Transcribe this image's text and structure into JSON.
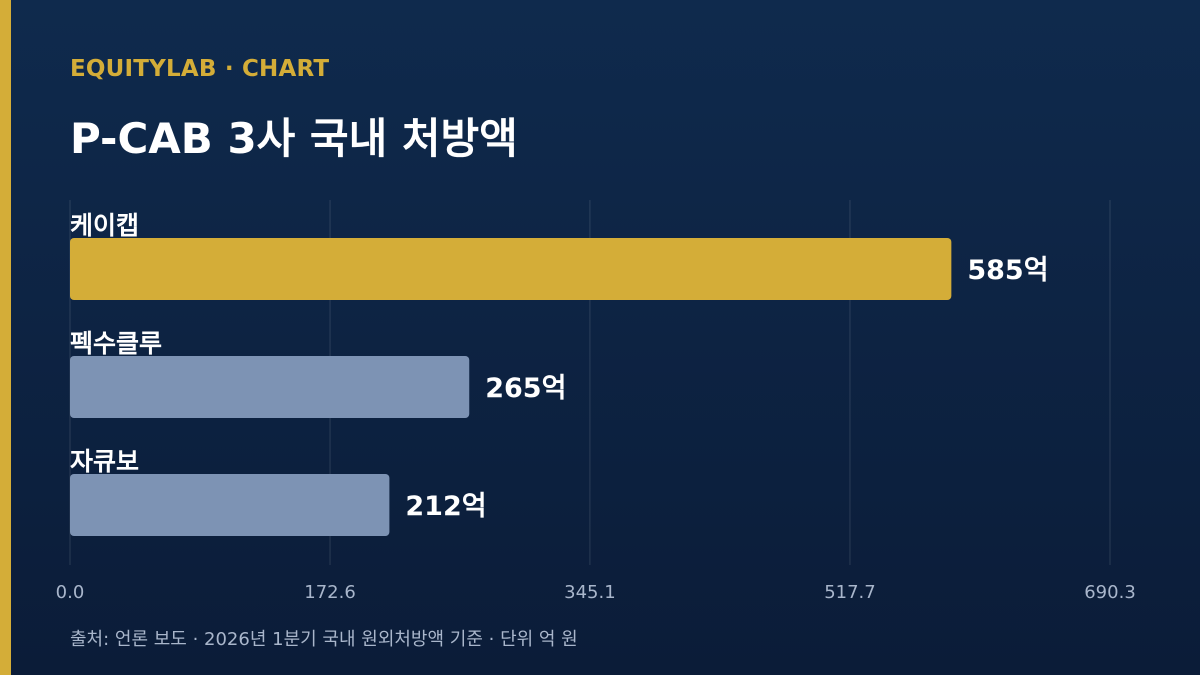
{
  "header": {
    "kicker": "EQUITYLAB · CHART",
    "title": "P-CAB 3사 국내 처방액"
  },
  "footer": {
    "source": "출처: 언론 보도 · 2026년 1분기 국내 원외처방액 기준 · 단위 억 원"
  },
  "colors": {
    "accent": "#d4ad38",
    "highlight_bar": "#d4ad38",
    "bar": "#7d93b4",
    "background": "#0c1f3d"
  },
  "chart_data": {
    "type": "bar",
    "orientation": "horizontal",
    "categories": [
      "케이캡",
      "펙수클루",
      "자큐보"
    ],
    "values": [
      585,
      265,
      212
    ],
    "value_labels": [
      "585억",
      "265억",
      "212억"
    ],
    "highlight_index": 0,
    "xlim": [
      0,
      690.3
    ],
    "xticks": [
      "0.0",
      "172.6",
      "345.1",
      "517.7",
      "690.3"
    ],
    "grid": true,
    "legend": "none"
  }
}
